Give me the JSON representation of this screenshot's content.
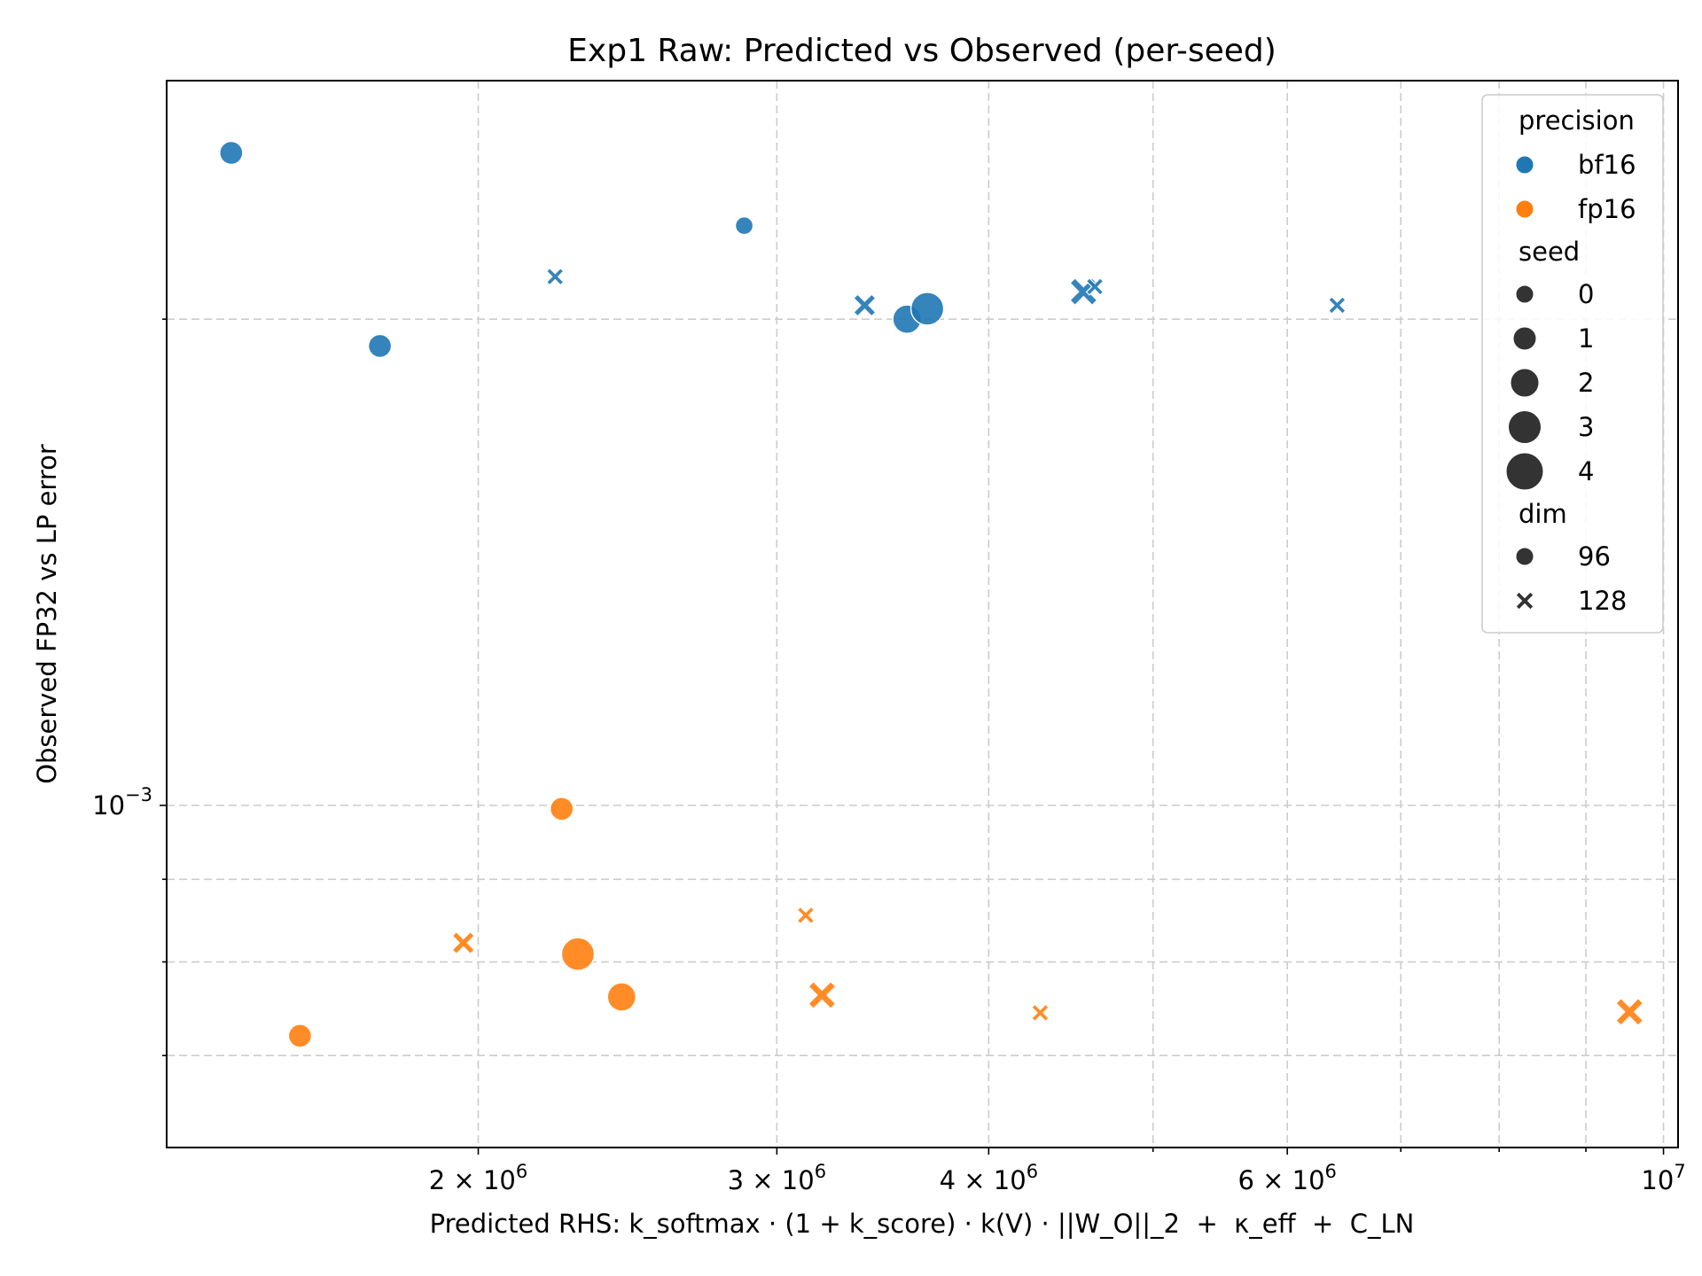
{
  "chart_data": {
    "type": "scatter",
    "title": "Exp1 Raw: Predicted vs Observed (per-seed)",
    "xlabel": "Predicted RHS: k_softmax · (1 + k_score) · k(V) · ||W_O||_2  +  κ_eff  +  C_LN",
    "ylabel": "Observed FP32 vs LP error",
    "xscale": "log",
    "yscale": "log",
    "xlim": [
      1310000,
      10200000
    ],
    "ylim": [
      0.000614,
      0.00281
    ],
    "grid": true,
    "legend_position": "upper right",
    "x_ticks": [
      {
        "value": 2000000,
        "base": "2",
        "exp": "6"
      },
      {
        "value": 3000000,
        "base": "3",
        "exp": "6"
      },
      {
        "value": 4000000,
        "base": "4",
        "exp": "6"
      },
      {
        "value": 6000000,
        "base": "6",
        "exp": "6"
      },
      {
        "value": 10000000,
        "base": "10",
        "exp": "7"
      }
    ],
    "y_ticks": [
      {
        "value": 0.001,
        "base": "10",
        "exp": "−3"
      }
    ],
    "hue": {
      "title": "precision",
      "entries": [
        {
          "label": "bf16",
          "color": "#1f77b4"
        },
        {
          "label": "fp16",
          "color": "#ff7f0e"
        }
      ]
    },
    "size": {
      "title": "seed",
      "entries": [
        "0",
        "1",
        "2",
        "3",
        "4"
      ]
    },
    "style": {
      "title": "dim",
      "entries": [
        {
          "label": "96",
          "marker": "circle"
        },
        {
          "label": "128",
          "marker": "x"
        }
      ]
    },
    "points": [
      {
        "precision": "bf16",
        "seed": 1,
        "dim": 96,
        "x": 1430000,
        "y": 0.002535
      },
      {
        "precision": "bf16",
        "seed": 0,
        "dim": 96,
        "x": 2870000,
        "y": 0.002285
      },
      {
        "precision": "bf16",
        "seed": 0,
        "dim": 128,
        "x": 2220000,
        "y": 0.002125
      },
      {
        "precision": "bf16",
        "seed": 1,
        "dim": 96,
        "x": 1750000,
        "y": 0.001925
      },
      {
        "precision": "bf16",
        "seed": 1,
        "dim": 128,
        "x": 3380000,
        "y": 0.00204
      },
      {
        "precision": "bf16",
        "seed": 2,
        "dim": 96,
        "x": 3580000,
        "y": 0.002
      },
      {
        "precision": "bf16",
        "seed": 3,
        "dim": 96,
        "x": 3680000,
        "y": 0.00203
      },
      {
        "precision": "bf16",
        "seed": 2,
        "dim": 128,
        "x": 4550000,
        "y": 0.00208
      },
      {
        "precision": "bf16",
        "seed": 0,
        "dim": 128,
        "x": 4620000,
        "y": 0.002095
      },
      {
        "precision": "bf16",
        "seed": 0,
        "dim": 128,
        "x": 6420000,
        "y": 0.00204
      },
      {
        "precision": "fp16",
        "seed": 1,
        "dim": 96,
        "x": 2240000,
        "y": 0.000995
      },
      {
        "precision": "fp16",
        "seed": 0,
        "dim": 128,
        "x": 3120000,
        "y": 0.000855
      },
      {
        "precision": "fp16",
        "seed": 1,
        "dim": 128,
        "x": 1960000,
        "y": 0.000822
      },
      {
        "precision": "fp16",
        "seed": 3,
        "dim": 96,
        "x": 2290000,
        "y": 0.000809
      },
      {
        "precision": "fp16",
        "seed": 2,
        "dim": 96,
        "x": 2430000,
        "y": 0.000761
      },
      {
        "precision": "fp16",
        "seed": 2,
        "dim": 128,
        "x": 3190000,
        "y": 0.000763
      },
      {
        "precision": "fp16",
        "seed": 0,
        "dim": 128,
        "x": 4290000,
        "y": 0.000744
      },
      {
        "precision": "fp16",
        "seed": 2,
        "dim": 128,
        "x": 9550000,
        "y": 0.000745
      },
      {
        "precision": "fp16",
        "seed": 1,
        "dim": 96,
        "x": 1570000,
        "y": 0.00072
      }
    ]
  }
}
